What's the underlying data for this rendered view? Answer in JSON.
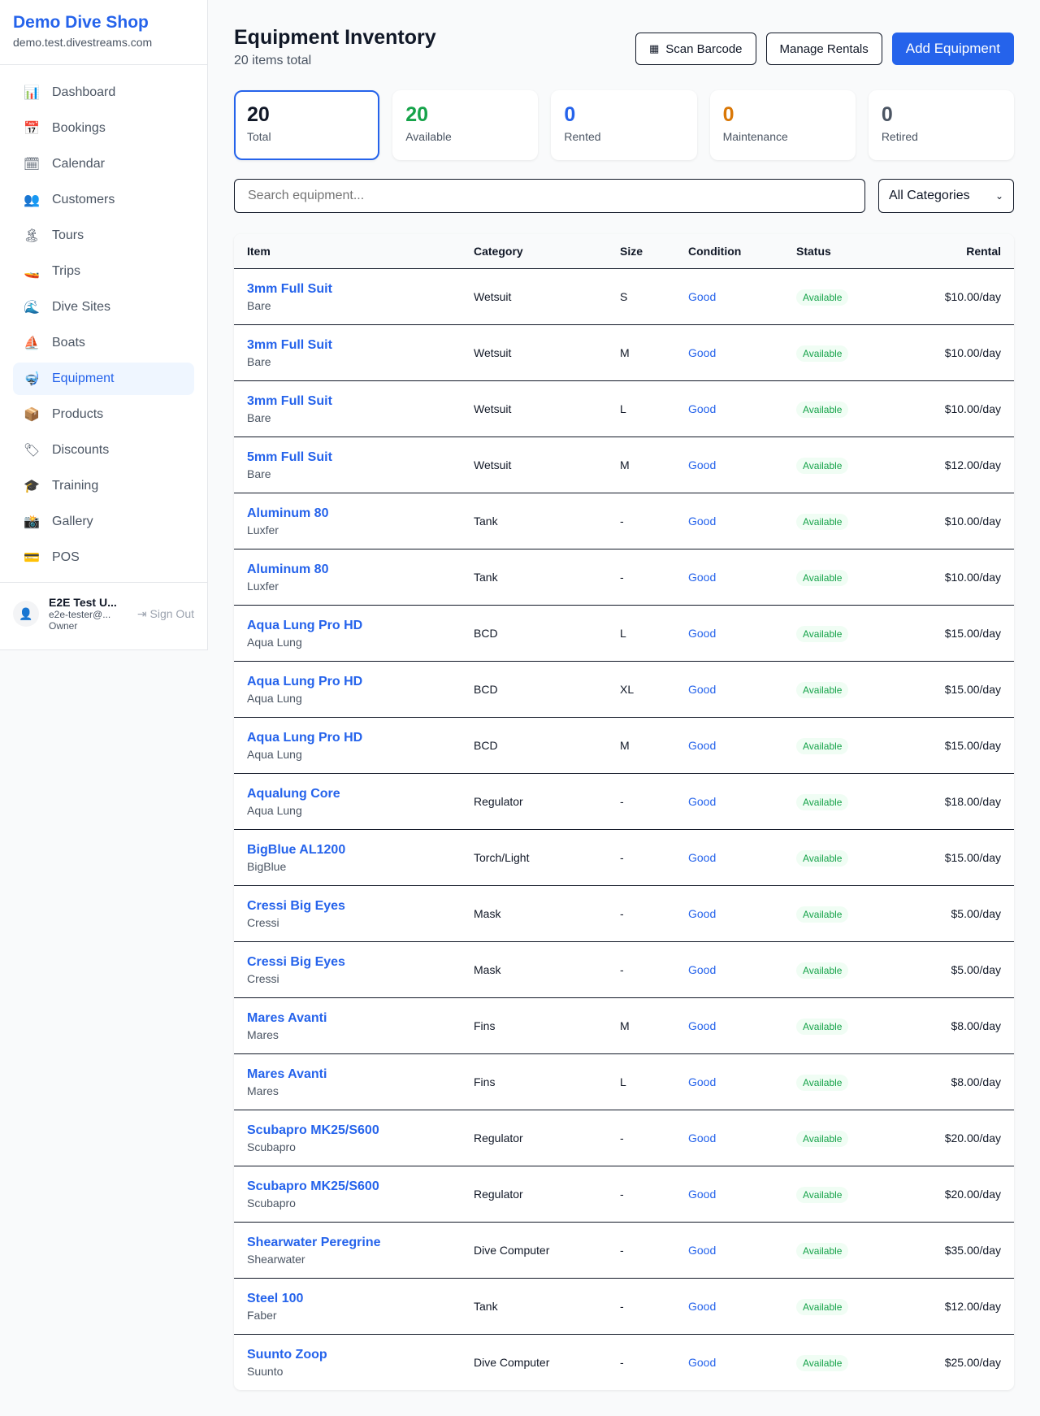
{
  "sidebar": {
    "brand": "Demo Dive Shop",
    "domain": "demo.test.divestreams.com",
    "items": [
      {
        "label": "Dashboard",
        "icon": "📊"
      },
      {
        "label": "Bookings",
        "icon": "📅"
      },
      {
        "label": "Calendar",
        "icon": "🗓"
      },
      {
        "label": "Customers",
        "icon": "👥"
      },
      {
        "label": "Tours",
        "icon": "🏝"
      },
      {
        "label": "Trips",
        "icon": "🚤"
      },
      {
        "label": "Dive Sites",
        "icon": "🌊"
      },
      {
        "label": "Boats",
        "icon": "⛵"
      },
      {
        "label": "Equipment",
        "icon": "🤿"
      },
      {
        "label": "Products",
        "icon": "📦"
      },
      {
        "label": "Discounts",
        "icon": "🏷"
      },
      {
        "label": "Training",
        "icon": "🎓"
      },
      {
        "label": "Gallery",
        "icon": "📸"
      },
      {
        "label": "POS",
        "icon": "💳"
      }
    ],
    "active": "Equipment",
    "user": {
      "name": "E2E Test U...",
      "email": "e2e-tester@...",
      "role": "Owner",
      "signout": "Sign Out"
    }
  },
  "header": {
    "title": "Equipment Inventory",
    "subtitle": "20 items total",
    "scan": "Scan Barcode",
    "manage": "Manage Rentals",
    "add": "Add Equipment"
  },
  "stats": [
    {
      "value": "20",
      "label": "Total",
      "color": "#111827"
    },
    {
      "value": "20",
      "label": "Available",
      "color": "#16a34a"
    },
    {
      "value": "0",
      "label": "Rented",
      "color": "#2563eb"
    },
    {
      "value": "0",
      "label": "Maintenance",
      "color": "#d97706"
    },
    {
      "value": "0",
      "label": "Retired",
      "color": "#4b5563"
    }
  ],
  "filters": {
    "search_placeholder": "Search equipment...",
    "category": "All Categories"
  },
  "table": {
    "headers": [
      "Item",
      "Category",
      "Size",
      "Condition",
      "Status",
      "Rental"
    ],
    "rows": [
      {
        "name": "3mm Full Suit",
        "brand": "Bare",
        "category": "Wetsuit",
        "size": "S",
        "condition": "Good",
        "status": "Available",
        "rental": "$10.00/day"
      },
      {
        "name": "3mm Full Suit",
        "brand": "Bare",
        "category": "Wetsuit",
        "size": "M",
        "condition": "Good",
        "status": "Available",
        "rental": "$10.00/day"
      },
      {
        "name": "3mm Full Suit",
        "brand": "Bare",
        "category": "Wetsuit",
        "size": "L",
        "condition": "Good",
        "status": "Available",
        "rental": "$10.00/day"
      },
      {
        "name": "5mm Full Suit",
        "brand": "Bare",
        "category": "Wetsuit",
        "size": "M",
        "condition": "Good",
        "status": "Available",
        "rental": "$12.00/day"
      },
      {
        "name": "Aluminum 80",
        "brand": "Luxfer",
        "category": "Tank",
        "size": "-",
        "condition": "Good",
        "status": "Available",
        "rental": "$10.00/day"
      },
      {
        "name": "Aluminum 80",
        "brand": "Luxfer",
        "category": "Tank",
        "size": "-",
        "condition": "Good",
        "status": "Available",
        "rental": "$10.00/day"
      },
      {
        "name": "Aqua Lung Pro HD",
        "brand": "Aqua Lung",
        "category": "BCD",
        "size": "L",
        "condition": "Good",
        "status": "Available",
        "rental": "$15.00/day"
      },
      {
        "name": "Aqua Lung Pro HD",
        "brand": "Aqua Lung",
        "category": "BCD",
        "size": "XL",
        "condition": "Good",
        "status": "Available",
        "rental": "$15.00/day"
      },
      {
        "name": "Aqua Lung Pro HD",
        "brand": "Aqua Lung",
        "category": "BCD",
        "size": "M",
        "condition": "Good",
        "status": "Available",
        "rental": "$15.00/day"
      },
      {
        "name": "Aqualung Core",
        "brand": "Aqua Lung",
        "category": "Regulator",
        "size": "-",
        "condition": "Good",
        "status": "Available",
        "rental": "$18.00/day"
      },
      {
        "name": "BigBlue AL1200",
        "brand": "BigBlue",
        "category": "Torch/Light",
        "size": "-",
        "condition": "Good",
        "status": "Available",
        "rental": "$15.00/day"
      },
      {
        "name": "Cressi Big Eyes",
        "brand": "Cressi",
        "category": "Mask",
        "size": "-",
        "condition": "Good",
        "status": "Available",
        "rental": "$5.00/day"
      },
      {
        "name": "Cressi Big Eyes",
        "brand": "Cressi",
        "category": "Mask",
        "size": "-",
        "condition": "Good",
        "status": "Available",
        "rental": "$5.00/day"
      },
      {
        "name": "Mares Avanti",
        "brand": "Mares",
        "category": "Fins",
        "size": "M",
        "condition": "Good",
        "status": "Available",
        "rental": "$8.00/day"
      },
      {
        "name": "Mares Avanti",
        "brand": "Mares",
        "category": "Fins",
        "size": "L",
        "condition": "Good",
        "status": "Available",
        "rental": "$8.00/day"
      },
      {
        "name": "Scubapro MK25/S600",
        "brand": "Scubapro",
        "category": "Regulator",
        "size": "-",
        "condition": "Good",
        "status": "Available",
        "rental": "$20.00/day"
      },
      {
        "name": "Scubapro MK25/S600",
        "brand": "Scubapro",
        "category": "Regulator",
        "size": "-",
        "condition": "Good",
        "status": "Available",
        "rental": "$20.00/day"
      },
      {
        "name": "Shearwater Peregrine",
        "brand": "Shearwater",
        "category": "Dive Computer",
        "size": "-",
        "condition": "Good",
        "status": "Available",
        "rental": "$35.00/day"
      },
      {
        "name": "Steel 100",
        "brand": "Faber",
        "category": "Tank",
        "size": "-",
        "condition": "Good",
        "status": "Available",
        "rental": "$12.00/day"
      },
      {
        "name": "Suunto Zoop",
        "brand": "Suunto",
        "category": "Dive Computer",
        "size": "-",
        "condition": "Good",
        "status": "Available",
        "rental": "$25.00/day"
      }
    ]
  }
}
